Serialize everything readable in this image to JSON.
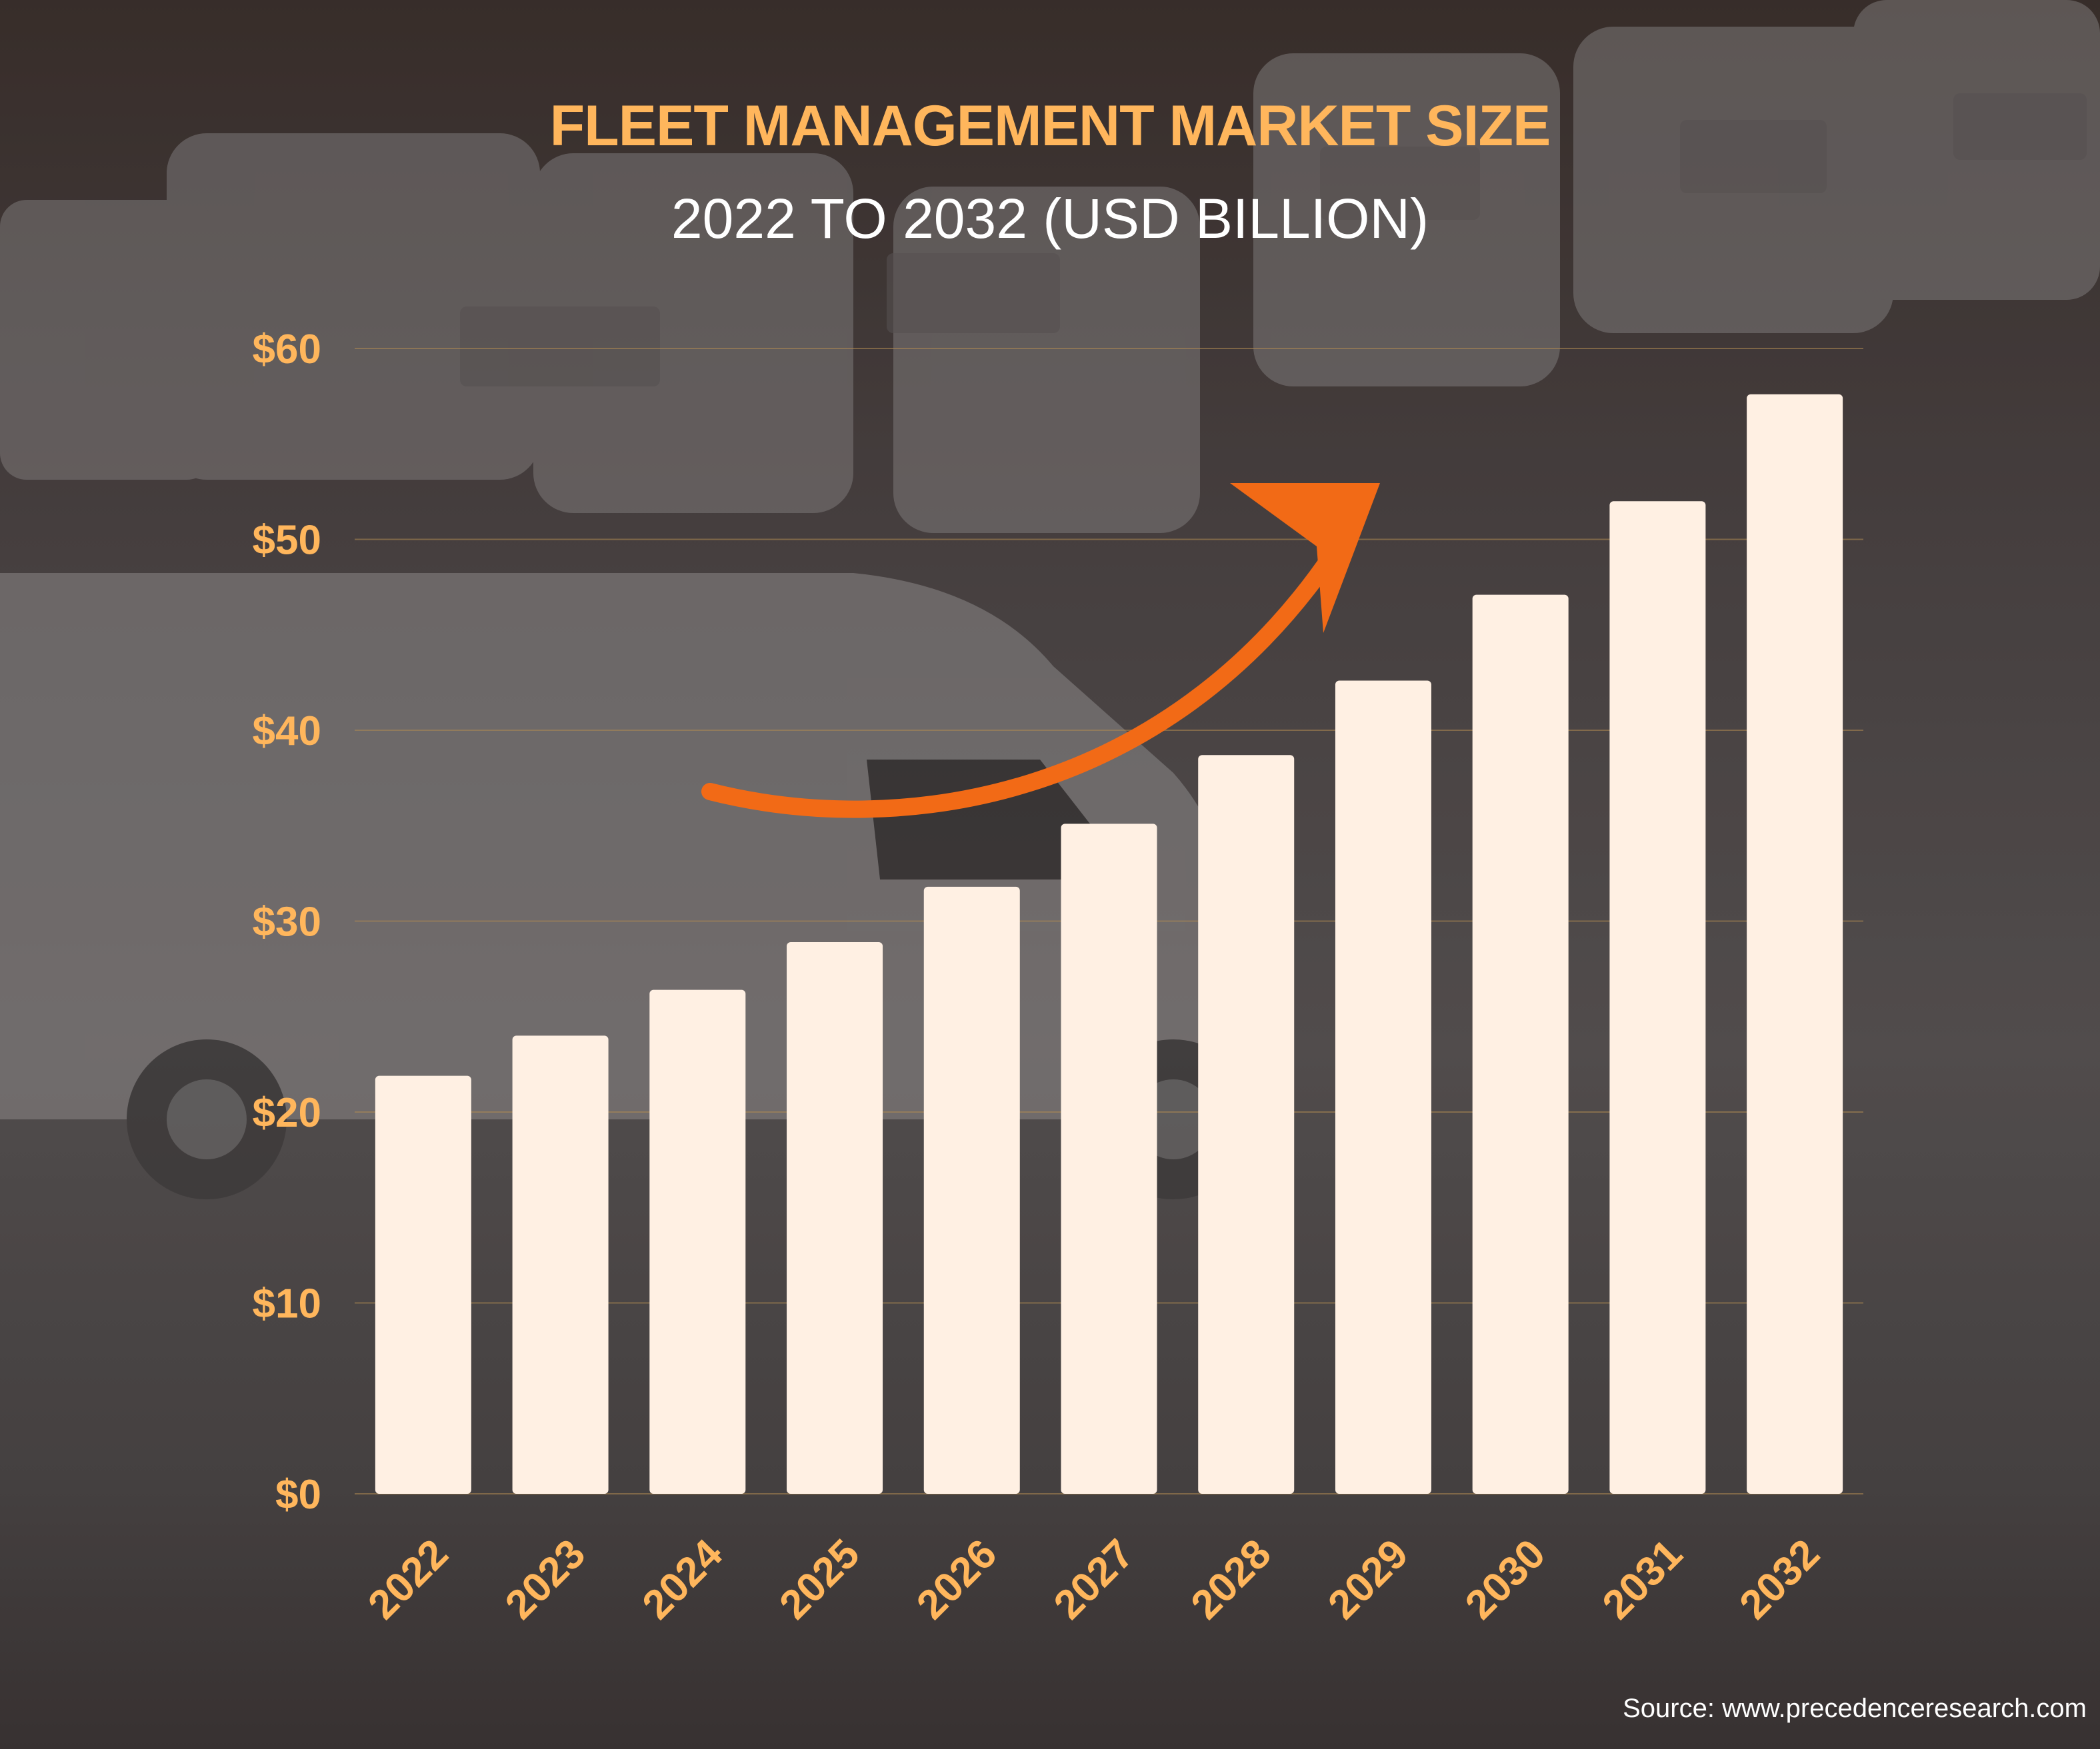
{
  "header": {
    "title": "FLEET MANAGEMENT MARKET SIZE",
    "subtitle": "2022 TO 2032 (USD BILLION)"
  },
  "source": "Source: www.precedenceresearch.com",
  "colors": {
    "bar": "#fff0e3",
    "label": "#ffb65c",
    "arrow": "#f26a16",
    "grid": "#b08a52"
  },
  "chart_data": {
    "type": "bar",
    "title": "FLEET MANAGEMENT MARKET SIZE",
    "subtitle": "2022 TO 2032 (USD BILLION)",
    "categories": [
      "2022",
      "2023",
      "2024",
      "2025",
      "2026",
      "2027",
      "2028",
      "2029",
      "2030",
      "2031",
      "2032"
    ],
    "values": [
      21.9,
      24.0,
      26.4,
      28.9,
      31.8,
      35.1,
      38.7,
      42.6,
      47.1,
      52.0,
      57.6
    ],
    "y_ticks": [
      "$0",
      "$10",
      "$20",
      "$30",
      "$40",
      "$50",
      "$60"
    ],
    "y_tick_values": [
      0,
      10,
      20,
      30,
      40,
      50,
      60
    ],
    "ylim": [
      0,
      60
    ],
    "xlabel": "",
    "ylabel": "",
    "grid": true,
    "legend": "none"
  }
}
